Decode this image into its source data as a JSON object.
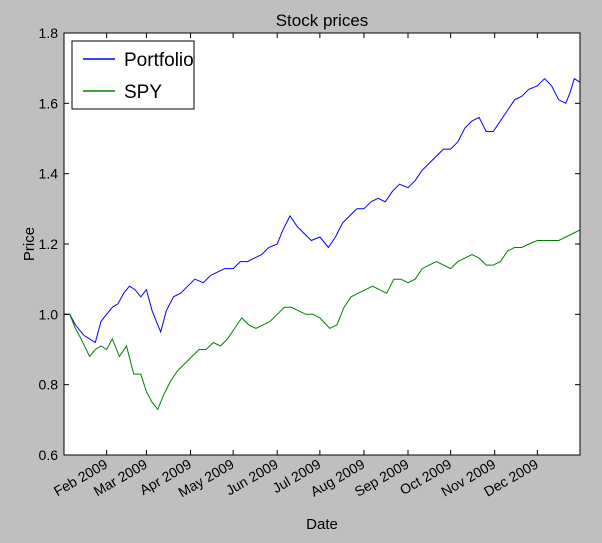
{
  "chart_data": {
    "type": "line",
    "title": "Stock prices",
    "xlabel": "Date",
    "ylabel": "Price",
    "ylim": [
      0.6,
      1.8
    ],
    "yticks": [
      0.6,
      0.8,
      1.0,
      1.2,
      1.4,
      1.6,
      1.8
    ],
    "ytick_labels": [
      "0.6",
      "0.8",
      "1.0",
      "1.2",
      "1.4",
      "1.6",
      "1.8"
    ],
    "xlim": [
      "2009-01-02",
      "2009-12-31"
    ],
    "xticks": [
      "2009-02-01",
      "2009-03-01",
      "2009-04-01",
      "2009-05-01",
      "2009-06-01",
      "2009-07-01",
      "2009-08-01",
      "2009-09-01",
      "2009-10-01",
      "2009-11-01",
      "2009-12-01"
    ],
    "xtick_labels": [
      "Feb 2009",
      "Mar 2009",
      "Apr 2009",
      "May 2009",
      "Jun 2009",
      "Jul 2009",
      "Aug 2009",
      "Sep 2009",
      "Oct 2009",
      "Nov 2009",
      "Dec 2009"
    ],
    "grid": false,
    "legend_position": "top-left",
    "series": [
      {
        "name": "Portfolio",
        "color": "#0000ff",
        "points": [
          [
            "2009-01-02",
            1.0
          ],
          [
            "2009-01-06",
            1.0
          ],
          [
            "2009-01-10",
            0.97
          ],
          [
            "2009-01-16",
            0.94
          ],
          [
            "2009-01-20",
            0.93
          ],
          [
            "2009-01-24",
            0.92
          ],
          [
            "2009-01-28",
            0.98
          ],
          [
            "2009-02-01",
            1.0
          ],
          [
            "2009-02-05",
            1.02
          ],
          [
            "2009-02-09",
            1.03
          ],
          [
            "2009-02-13",
            1.06
          ],
          [
            "2009-02-17",
            1.08
          ],
          [
            "2009-02-21",
            1.07
          ],
          [
            "2009-02-25",
            1.05
          ],
          [
            "2009-03-01",
            1.07
          ],
          [
            "2009-03-05",
            1.01
          ],
          [
            "2009-03-09",
            0.97
          ],
          [
            "2009-03-11",
            0.95
          ],
          [
            "2009-03-15",
            1.01
          ],
          [
            "2009-03-20",
            1.05
          ],
          [
            "2009-03-25",
            1.06
          ],
          [
            "2009-03-30",
            1.08
          ],
          [
            "2009-04-04",
            1.1
          ],
          [
            "2009-04-10",
            1.09
          ],
          [
            "2009-04-15",
            1.11
          ],
          [
            "2009-04-20",
            1.12
          ],
          [
            "2009-04-25",
            1.13
          ],
          [
            "2009-05-01",
            1.13
          ],
          [
            "2009-05-06",
            1.15
          ],
          [
            "2009-05-11",
            1.15
          ],
          [
            "2009-05-16",
            1.16
          ],
          [
            "2009-05-21",
            1.17
          ],
          [
            "2009-05-26",
            1.19
          ],
          [
            "2009-06-01",
            1.2
          ],
          [
            "2009-06-05",
            1.24
          ],
          [
            "2009-06-10",
            1.28
          ],
          [
            "2009-06-15",
            1.25
          ],
          [
            "2009-06-20",
            1.23
          ],
          [
            "2009-06-25",
            1.21
          ],
          [
            "2009-07-01",
            1.22
          ],
          [
            "2009-07-07",
            1.19
          ],
          [
            "2009-07-12",
            1.22
          ],
          [
            "2009-07-17",
            1.26
          ],
          [
            "2009-07-22",
            1.28
          ],
          [
            "2009-07-27",
            1.3
          ],
          [
            "2009-08-01",
            1.3
          ],
          [
            "2009-08-06",
            1.32
          ],
          [
            "2009-08-11",
            1.33
          ],
          [
            "2009-08-16",
            1.32
          ],
          [
            "2009-08-21",
            1.35
          ],
          [
            "2009-08-26",
            1.37
          ],
          [
            "2009-09-01",
            1.36
          ],
          [
            "2009-09-06",
            1.38
          ],
          [
            "2009-09-11",
            1.41
          ],
          [
            "2009-09-16",
            1.43
          ],
          [
            "2009-09-21",
            1.45
          ],
          [
            "2009-09-26",
            1.47
          ],
          [
            "2009-10-01",
            1.47
          ],
          [
            "2009-10-06",
            1.49
          ],
          [
            "2009-10-11",
            1.53
          ],
          [
            "2009-10-16",
            1.55
          ],
          [
            "2009-10-21",
            1.56
          ],
          [
            "2009-10-26",
            1.52
          ],
          [
            "2009-10-31",
            1.52
          ],
          [
            "2009-11-05",
            1.55
          ],
          [
            "2009-11-10",
            1.58
          ],
          [
            "2009-11-15",
            1.61
          ],
          [
            "2009-11-20",
            1.62
          ],
          [
            "2009-11-25",
            1.64
          ],
          [
            "2009-12-01",
            1.65
          ],
          [
            "2009-12-06",
            1.67
          ],
          [
            "2009-12-11",
            1.65
          ],
          [
            "2009-12-16",
            1.61
          ],
          [
            "2009-12-21",
            1.6
          ],
          [
            "2009-12-24",
            1.63
          ],
          [
            "2009-12-27",
            1.67
          ],
          [
            "2009-12-31",
            1.66
          ]
        ]
      },
      {
        "name": "SPY",
        "color": "#008000",
        "points": [
          [
            "2009-01-02",
            1.0
          ],
          [
            "2009-01-06",
            1.0
          ],
          [
            "2009-01-10",
            0.96
          ],
          [
            "2009-01-14",
            0.93
          ],
          [
            "2009-01-20",
            0.88
          ],
          [
            "2009-01-24",
            0.9
          ],
          [
            "2009-01-28",
            0.91
          ],
          [
            "2009-02-01",
            0.9
          ],
          [
            "2009-02-05",
            0.93
          ],
          [
            "2009-02-10",
            0.88
          ],
          [
            "2009-02-15",
            0.91
          ],
          [
            "2009-02-20",
            0.83
          ],
          [
            "2009-02-25",
            0.83
          ],
          [
            "2009-03-01",
            0.78
          ],
          [
            "2009-03-05",
            0.75
          ],
          [
            "2009-03-09",
            0.73
          ],
          [
            "2009-03-13",
            0.77
          ],
          [
            "2009-03-18",
            0.81
          ],
          [
            "2009-03-23",
            0.84
          ],
          [
            "2009-03-28",
            0.86
          ],
          [
            "2009-04-02",
            0.88
          ],
          [
            "2009-04-07",
            0.9
          ],
          [
            "2009-04-12",
            0.9
          ],
          [
            "2009-04-17",
            0.92
          ],
          [
            "2009-04-22",
            0.91
          ],
          [
            "2009-04-27",
            0.93
          ],
          [
            "2009-05-02",
            0.96
          ],
          [
            "2009-05-07",
            0.99
          ],
          [
            "2009-05-12",
            0.97
          ],
          [
            "2009-05-17",
            0.96
          ],
          [
            "2009-05-22",
            0.97
          ],
          [
            "2009-05-27",
            0.98
          ],
          [
            "2009-06-01",
            1.0
          ],
          [
            "2009-06-06",
            1.02
          ],
          [
            "2009-06-11",
            1.02
          ],
          [
            "2009-06-16",
            1.01
          ],
          [
            "2009-06-21",
            1.0
          ],
          [
            "2009-06-26",
            1.0
          ],
          [
            "2009-07-01",
            0.99
          ],
          [
            "2009-07-08",
            0.96
          ],
          [
            "2009-07-13",
            0.97
          ],
          [
            "2009-07-18",
            1.02
          ],
          [
            "2009-07-23",
            1.05
          ],
          [
            "2009-07-28",
            1.06
          ],
          [
            "2009-08-02",
            1.07
          ],
          [
            "2009-08-07",
            1.08
          ],
          [
            "2009-08-12",
            1.07
          ],
          [
            "2009-08-17",
            1.06
          ],
          [
            "2009-08-22",
            1.1
          ],
          [
            "2009-08-27",
            1.1
          ],
          [
            "2009-09-01",
            1.09
          ],
          [
            "2009-09-06",
            1.1
          ],
          [
            "2009-09-11",
            1.13
          ],
          [
            "2009-09-16",
            1.14
          ],
          [
            "2009-09-21",
            1.15
          ],
          [
            "2009-09-26",
            1.14
          ],
          [
            "2009-10-01",
            1.13
          ],
          [
            "2009-10-06",
            1.15
          ],
          [
            "2009-10-11",
            1.16
          ],
          [
            "2009-10-16",
            1.17
          ],
          [
            "2009-10-21",
            1.16
          ],
          [
            "2009-10-26",
            1.14
          ],
          [
            "2009-10-31",
            1.14
          ],
          [
            "2009-11-05",
            1.15
          ],
          [
            "2009-11-10",
            1.18
          ],
          [
            "2009-11-15",
            1.19
          ],
          [
            "2009-11-20",
            1.19
          ],
          [
            "2009-11-25",
            1.2
          ],
          [
            "2009-12-01",
            1.21
          ],
          [
            "2009-12-06",
            1.21
          ],
          [
            "2009-12-11",
            1.21
          ],
          [
            "2009-12-16",
            1.21
          ],
          [
            "2009-12-21",
            1.22
          ],
          [
            "2009-12-26",
            1.23
          ],
          [
            "2009-12-31",
            1.24
          ]
        ]
      }
    ]
  }
}
